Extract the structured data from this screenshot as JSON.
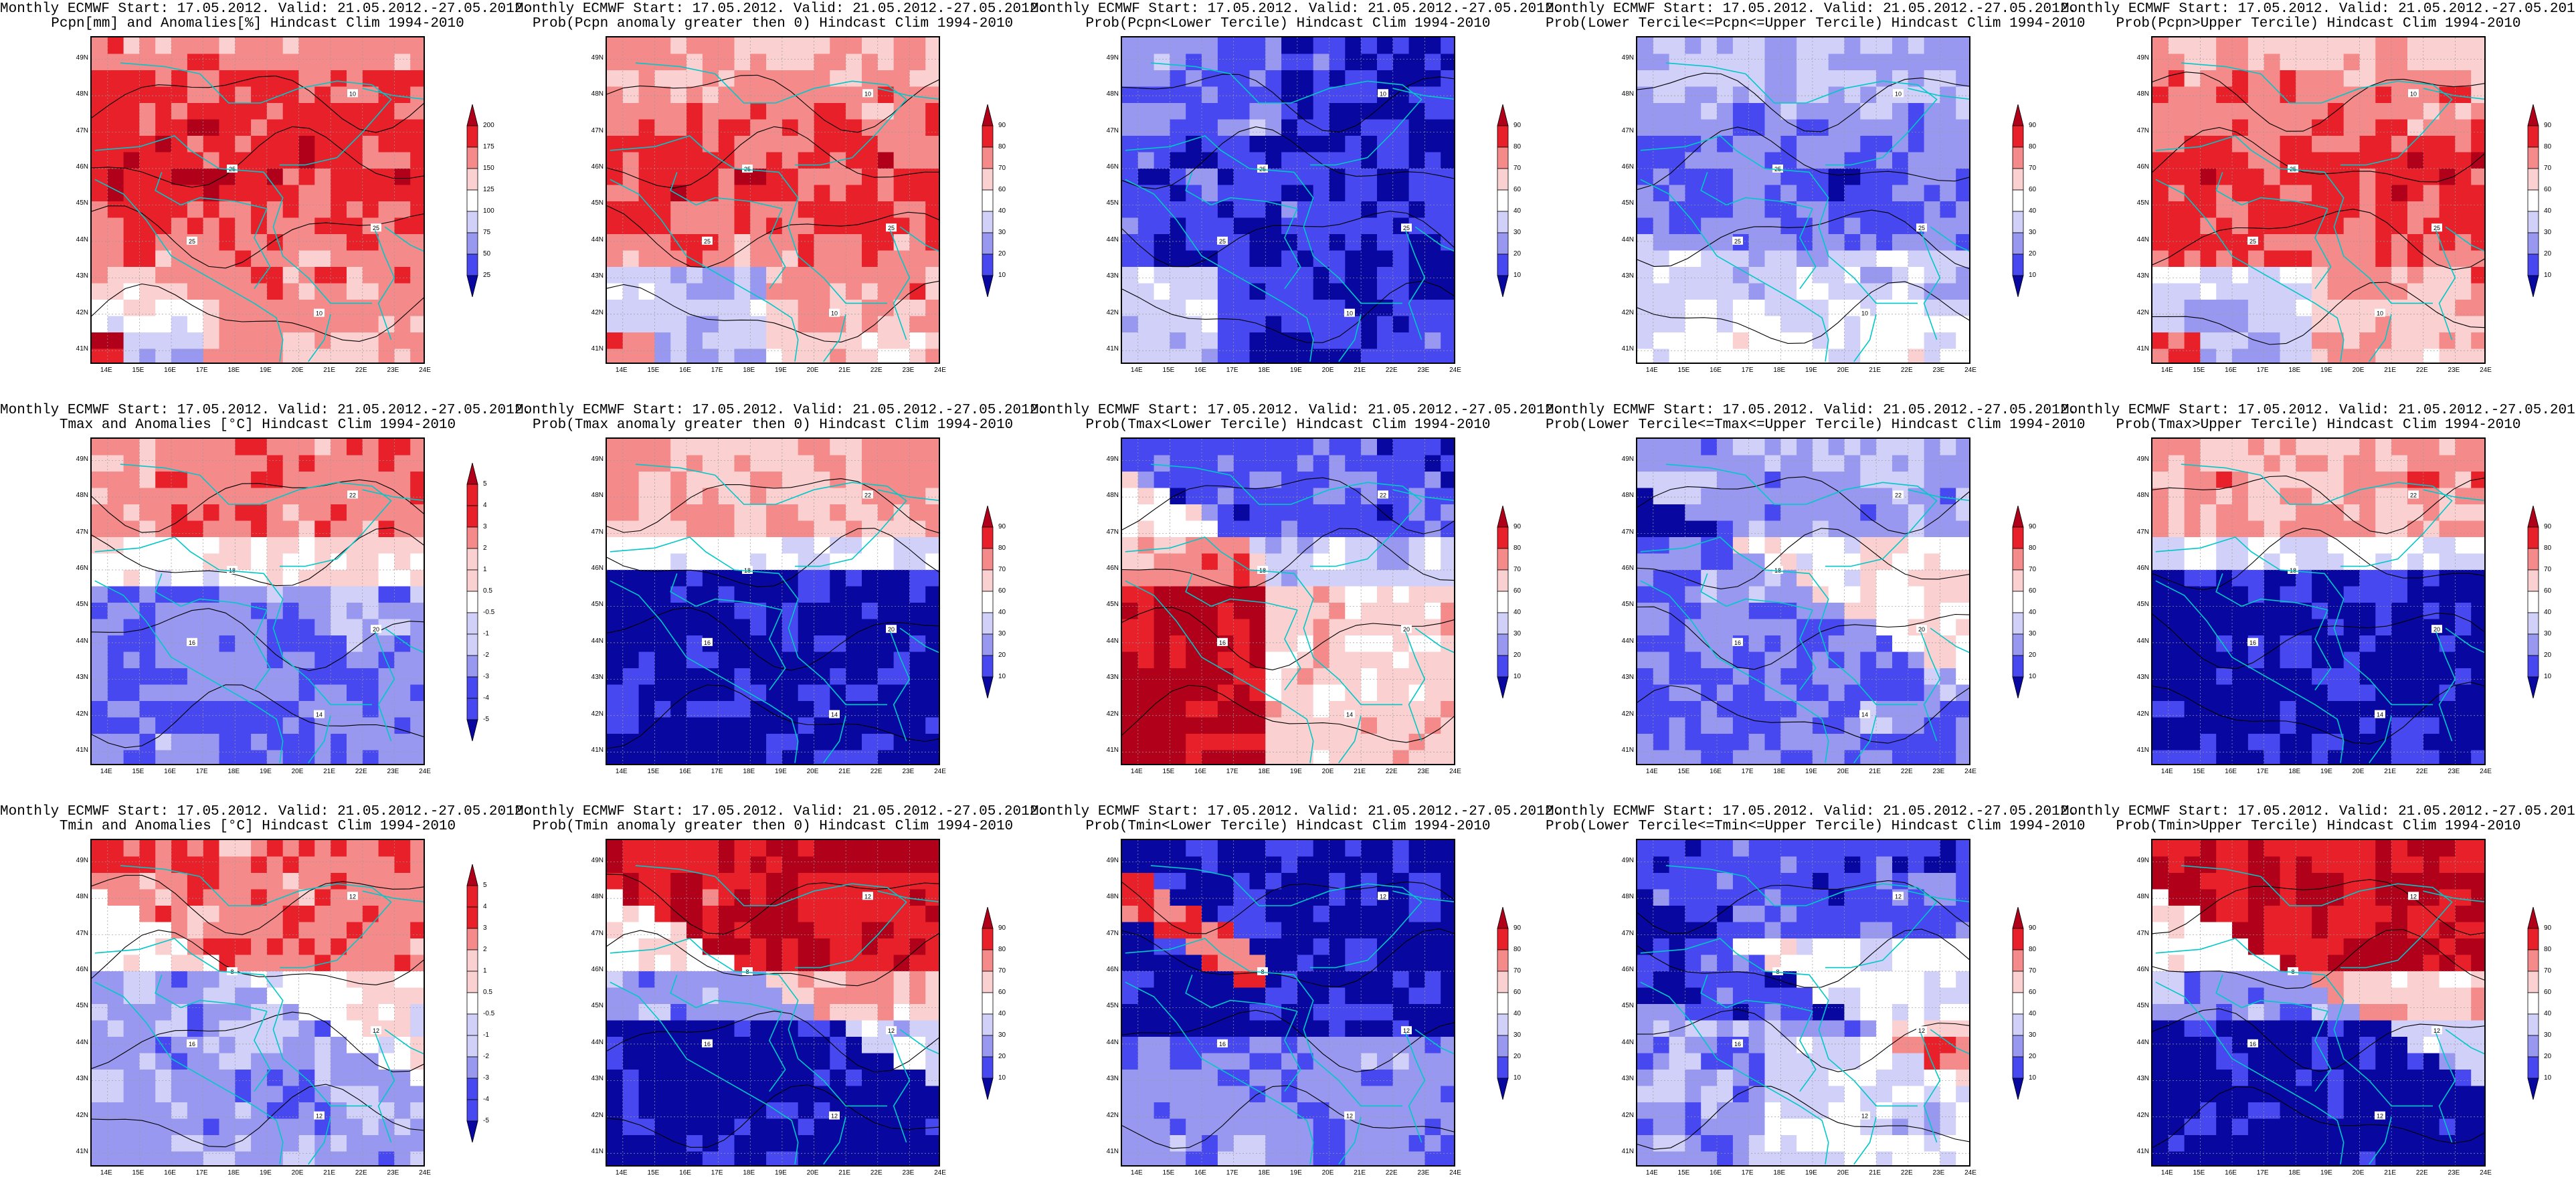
{
  "header": "Monthly ECMWF Start: 17.05.2012. Valid: 21.05.2012.-27.05.2012.",
  "lat_labels": [
    "49N",
    "48N",
    "47N",
    "46N",
    "45N",
    "44N",
    "43N",
    "42N",
    "41N"
  ],
  "lon_labels": [
    "14E",
    "15E",
    "16E",
    "17E",
    "18E",
    "19E",
    "20E",
    "21E",
    "22E",
    "23E",
    "24E"
  ],
  "extent": {
    "lon": [
      13.5,
      24
    ],
    "lat": [
      40.6,
      49.6
    ]
  },
  "scales": {
    "pcpn": [
      "200",
      "175",
      "150",
      "125",
      "100",
      "75",
      "50",
      "25"
    ],
    "temp": [
      "5",
      "4",
      "3",
      "2",
      "1",
      "0.5",
      "-0.5",
      "-1",
      "-2",
      "-3",
      "-4",
      "-5"
    ],
    "prob": [
      "90",
      "80",
      "70",
      "60",
      "40",
      "30",
      "20",
      "10"
    ]
  },
  "colors": {
    "dark_red": "#b0001a",
    "red": "#e8202a",
    "light_red": "#f58a8a",
    "pink": "#fbd0d0",
    "white": "#ffffff",
    "pale_blue": "#d0d0f8",
    "light_blue": "#9898f0",
    "blue": "#4848f0",
    "dark_blue": "#0808a0",
    "coastline": "#00c8c8",
    "contour": "#000000"
  },
  "panels": [
    {
      "title": "Pcpn[mm] and Anomalies[%] Hindcast Clim 1994-2010",
      "scale": "pcpn",
      "pattern": "pcpn_anom",
      "contours": [
        "10",
        "25",
        "25",
        "25",
        "10"
      ]
    },
    {
      "title": "Prob(Pcpn anomaly greater then 0) Hindcast Clim 1994-2010",
      "scale": "prob",
      "pattern": "pcpn_pos",
      "contours": [
        "10",
        "25",
        "25",
        "25",
        "10"
      ]
    },
    {
      "title": "Prob(Pcpn<Lower Tercile) Hindcast Clim 1994-2010",
      "scale": "prob",
      "pattern": "pcpn_low",
      "contours": [
        "10",
        "25",
        "25",
        "25",
        "10"
      ]
    },
    {
      "title": "Prob(Lower Tercile<=Pcpn<=Upper Tercile) Hindcast Clim 1994-2010",
      "scale": "prob",
      "pattern": "pcpn_mid",
      "contours": [
        "10",
        "25",
        "25",
        "25",
        "10"
      ]
    },
    {
      "title": "Prob(Pcpn>Upper Tercile) Hindcast Clim 1994-2010",
      "scale": "prob",
      "pattern": "pcpn_pos",
      "contours": [
        "10",
        "25",
        "25",
        "25",
        "10"
      ]
    },
    {
      "title": "Tmax and Anomalies [°C] Hindcast Clim 1994-2010",
      "scale": "temp",
      "pattern": "tmax_anom",
      "contours": [
        "22",
        "18",
        "20",
        "16",
        "14"
      ]
    },
    {
      "title": "Prob(Tmax anomaly greater then 0) Hindcast Clim 1994-2010",
      "scale": "prob",
      "pattern": "tmax_pos",
      "contours": [
        "22",
        "18",
        "20",
        "16",
        "14"
      ]
    },
    {
      "title": "Prob(Tmax<Lower Tercile) Hindcast Clim 1994-2010",
      "scale": "prob",
      "pattern": "tmax_low",
      "contours": [
        "22",
        "18",
        "20",
        "16",
        "14"
      ]
    },
    {
      "title": "Prob(Lower Tercile<=Tmax<=Upper Tercile) Hindcast Clim 1994-2010",
      "scale": "prob",
      "pattern": "tmax_mid",
      "contours": [
        "22",
        "18",
        "20",
        "16",
        "14"
      ]
    },
    {
      "title": "Prob(Tmax>Upper Tercile) Hindcast Clim 1994-2010",
      "scale": "prob",
      "pattern": "tmax_pos",
      "contours": [
        "22",
        "18",
        "20",
        "16",
        "14"
      ]
    },
    {
      "title": "Tmin and Anomalies [°C] Hindcast Clim 1994-2010",
      "scale": "temp",
      "pattern": "tmin_anom",
      "contours": [
        "12",
        "8",
        "12",
        "16",
        "12"
      ]
    },
    {
      "title": "Prob(Tmin anomaly greater then 0) Hindcast Clim 1994-2010",
      "scale": "prob",
      "pattern": "tmin_pos",
      "contours": [
        "12",
        "8",
        "12",
        "16",
        "12"
      ]
    },
    {
      "title": "Prob(Tmin<Lower Tercile) Hindcast Clim 1994-2010",
      "scale": "prob",
      "pattern": "tmin_low",
      "contours": [
        "12",
        "8",
        "12",
        "16",
        "12"
      ]
    },
    {
      "title": "Prob(Lower Tercile<=Tmin<=Upper Tercile) Hindcast Clim 1994-2010",
      "scale": "prob",
      "pattern": "tmin_mid",
      "contours": [
        "12",
        "8",
        "12",
        "16",
        "12"
      ]
    },
    {
      "title": "Prob(Tmin>Upper Tercile) Hindcast Clim 1994-2010",
      "scale": "prob",
      "pattern": "tmin_pos",
      "contours": [
        "12",
        "8",
        "12",
        "16",
        "12"
      ]
    }
  ]
}
